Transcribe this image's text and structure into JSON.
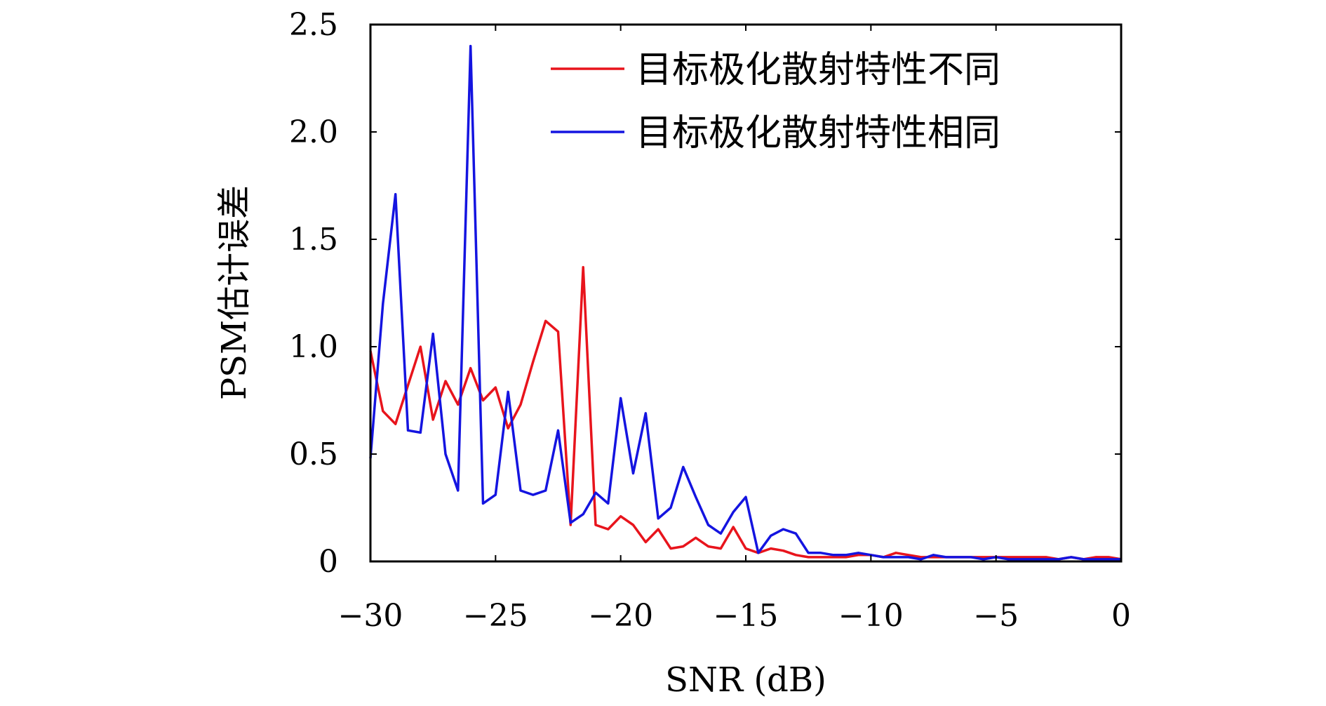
{
  "chart_data": {
    "type": "line",
    "xlabel": "SNR (dB)",
    "ylabel": "PSM估计误差",
    "xlim": [
      -30,
      0
    ],
    "ylim": [
      0,
      2.5
    ],
    "xticks": [
      -30,
      -25,
      -20,
      -15,
      -10,
      -5,
      0
    ],
    "xtick_labels": [
      "−30",
      "−25",
      "−20",
      "−15",
      "−10",
      "−5",
      "0"
    ],
    "yticks": [
      0,
      0.5,
      1.0,
      1.5,
      2.0,
      2.5
    ],
    "ytick_labels": [
      "0",
      "0.5",
      "1.0",
      "1.5",
      "2.0",
      "2.5"
    ],
    "legend_position": "top-right",
    "grid": false,
    "x": [
      -30,
      -29.5,
      -29,
      -28.5,
      -28,
      -27.5,
      -27,
      -26.5,
      -26,
      -25.5,
      -25,
      -24.5,
      -24,
      -23.5,
      -23,
      -22.5,
      -22,
      -21.5,
      -21,
      -20.5,
      -20,
      -19.5,
      -19,
      -18.5,
      -18,
      -17.5,
      -17,
      -16.5,
      -16,
      -15.5,
      -15,
      -14.5,
      -14,
      -13.5,
      -13,
      -12.5,
      -12,
      -11.5,
      -11,
      -10.5,
      -10,
      -9.5,
      -9,
      -8.5,
      -8,
      -7.5,
      -7,
      -6.5,
      -6,
      -5.5,
      -5,
      -4.5,
      -4,
      -3.5,
      -3,
      -2.5,
      -2,
      -1.5,
      -1,
      -0.5,
      0
    ],
    "series": [
      {
        "name": "目标极化散射特性不同",
        "color": "#e8141c",
        "values": [
          0.98,
          0.7,
          0.64,
          0.82,
          1.0,
          0.66,
          0.84,
          0.73,
          0.9,
          0.75,
          0.81,
          0.62,
          0.73,
          0.93,
          1.12,
          1.07,
          0.17,
          1.37,
          0.17,
          0.15,
          0.21,
          0.17,
          0.09,
          0.15,
          0.06,
          0.07,
          0.11,
          0.07,
          0.06,
          0.16,
          0.06,
          0.04,
          0.06,
          0.05,
          0.03,
          0.02,
          0.02,
          0.02,
          0.02,
          0.03,
          0.03,
          0.02,
          0.04,
          0.03,
          0.02,
          0.02,
          0.02,
          0.02,
          0.02,
          0.02,
          0.02,
          0.02,
          0.02,
          0.02,
          0.02,
          0.01,
          0.02,
          0.01,
          0.02,
          0.02,
          0.01
        ]
      },
      {
        "name": "目标极化散射特性相同",
        "color": "#1414e0",
        "values": [
          0.48,
          1.2,
          1.71,
          0.61,
          0.6,
          1.06,
          0.5,
          0.33,
          2.4,
          0.27,
          0.31,
          0.79,
          0.33,
          0.31,
          0.33,
          0.61,
          0.18,
          0.22,
          0.32,
          0.27,
          0.76,
          0.41,
          0.69,
          0.2,
          0.25,
          0.44,
          0.3,
          0.17,
          0.13,
          0.23,
          0.3,
          0.04,
          0.12,
          0.15,
          0.13,
          0.04,
          0.04,
          0.03,
          0.03,
          0.04,
          0.03,
          0.02,
          0.02,
          0.02,
          0.01,
          0.03,
          0.02,
          0.02,
          0.02,
          0.01,
          0.02,
          0.01,
          0.01,
          0.01,
          0.01,
          0.01,
          0.02,
          0.01,
          0.01,
          0.01,
          0.01
        ]
      }
    ]
  }
}
